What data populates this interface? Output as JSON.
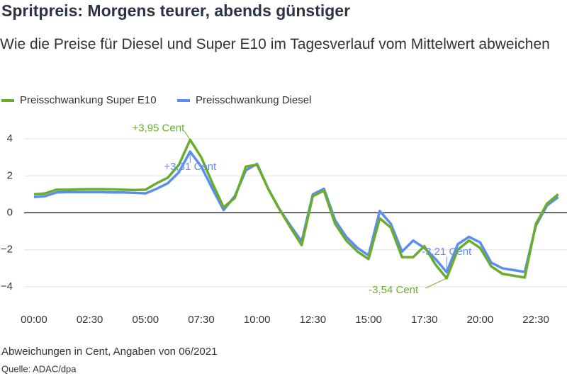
{
  "chart_data": {
    "type": "line",
    "title": "Spritpreis: Morgens teurer, abends günstiger",
    "subtitle": "Wie die Preise für Diesel und Super E10 im Tagesverlauf vom Mittelwert abweichen",
    "note": "Abweichungen in Cent, Angaben von 06/2021",
    "source": "Quelle: ADAC/dpa",
    "x": [
      0,
      0.5,
      1,
      1.5,
      2,
      2.5,
      3,
      3.5,
      4,
      4.5,
      5,
      5.5,
      6,
      6.5,
      7,
      7.5,
      8,
      8.5,
      9,
      9.5,
      10,
      10.5,
      11,
      11.5,
      12,
      12.5,
      13,
      13.5,
      14,
      14.5,
      15,
      15.5,
      16,
      16.5,
      17,
      17.5,
      18,
      18.5,
      19,
      19.5,
      20,
      20.5,
      21,
      21.5,
      22,
      22.5,
      23,
      23.5
    ],
    "series": [
      {
        "name": "Preisschwankung Super E10",
        "color": "#6aad2c",
        "values": [
          1.0,
          1.05,
          1.25,
          1.25,
          1.27,
          1.28,
          1.28,
          1.27,
          1.25,
          1.23,
          1.25,
          1.6,
          1.9,
          2.6,
          3.95,
          3.0,
          1.6,
          0.3,
          0.8,
          2.5,
          2.6,
          1.3,
          0.2,
          -0.8,
          -1.75,
          0.9,
          1.2,
          -0.6,
          -1.5,
          -2.1,
          -2.5,
          -0.3,
          -0.8,
          -2.4,
          -2.4,
          -1.8,
          -2.8,
          -3.54,
          -2.0,
          -1.5,
          -1.9,
          -2.9,
          -3.3,
          -3.4,
          -3.5,
          -0.6,
          0.5,
          1.0
        ]
      },
      {
        "name": "Preisschwankung Diesel",
        "color": "#5b8def",
        "values": [
          0.85,
          0.9,
          1.1,
          1.12,
          1.12,
          1.12,
          1.12,
          1.1,
          1.1,
          1.08,
          1.05,
          1.3,
          1.6,
          2.2,
          3.31,
          2.5,
          1.3,
          0.15,
          0.9,
          2.3,
          2.65,
          1.3,
          0.2,
          -0.7,
          -1.55,
          1.0,
          1.3,
          -0.4,
          -1.3,
          -1.9,
          -2.3,
          0.1,
          -0.6,
          -2.1,
          -1.5,
          -1.9,
          -2.5,
          -3.21,
          -1.7,
          -1.3,
          -1.6,
          -2.7,
          -3.0,
          -3.1,
          -3.2,
          -0.7,
          0.4,
          0.85
        ]
      }
    ],
    "annotations": [
      {
        "text": "+3,95 Cent",
        "series": 0,
        "index": 14
      },
      {
        "text": "+3,31 Cent",
        "series": 1,
        "index": 14
      },
      {
        "text": "-3,21 Cent",
        "series": 1,
        "index": 37
      },
      {
        "text": "-3,54 Cent",
        "series": 0,
        "index": 37
      }
    ],
    "xlim": [
      -0.3,
      23.8
    ],
    "ylim": [
      -5,
      5
    ],
    "xticks": [
      {
        "value": 0,
        "label": "00:00"
      },
      {
        "value": 2.5,
        "label": "02:30"
      },
      {
        "value": 5,
        "label": "05:00"
      },
      {
        "value": 7.5,
        "label": "07:30"
      },
      {
        "value": 10,
        "label": "10:00"
      },
      {
        "value": 12.5,
        "label": "12:30"
      },
      {
        "value": 15,
        "label": "15:00"
      },
      {
        "value": 17.5,
        "label": "17:30"
      },
      {
        "value": 20,
        "label": "20:00"
      },
      {
        "value": 22.5,
        "label": "22:30"
      }
    ],
    "yticks": [
      {
        "value": -4,
        "label": "−4"
      },
      {
        "value": -2,
        "label": "−2"
      },
      0,
      2,
      4
    ],
    "grid": true
  }
}
